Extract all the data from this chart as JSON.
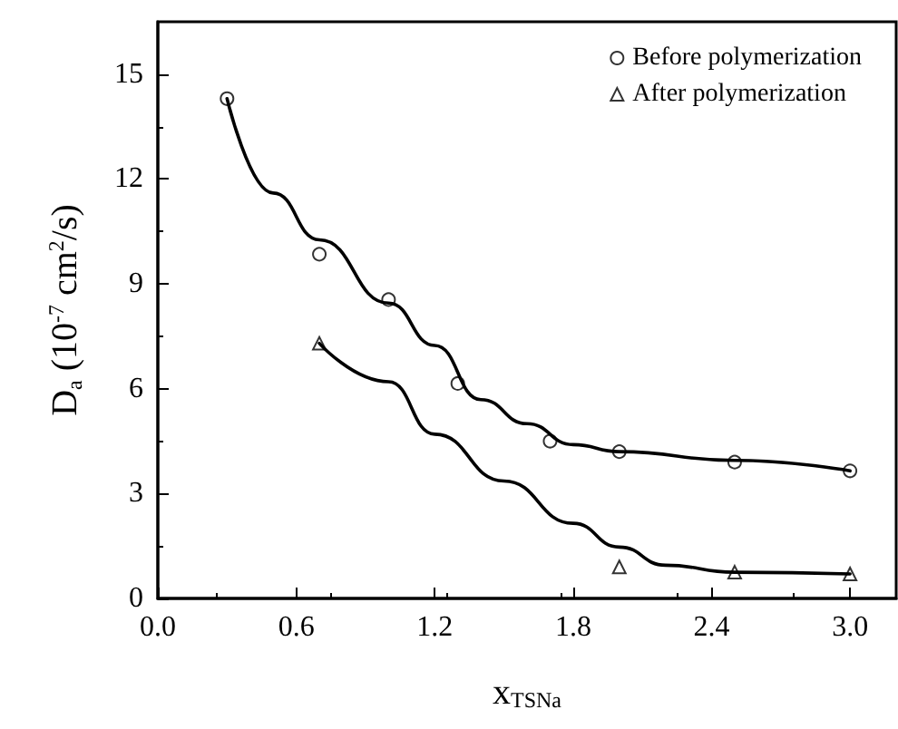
{
  "chart_data": {
    "type": "scatter",
    "xlabel": "x$_{TSNa}$",
    "ylabel": "D$_{a}$ (10$^{-7}$ cm$^{2}$/s)",
    "xlim": [
      0,
      3.2
    ],
    "xticks": [
      {
        "value": 0,
        "label": "0.0"
      },
      {
        "value": 0.6,
        "label": "0.6"
      },
      {
        "value": 1.2,
        "label": "1.2"
      },
      {
        "value": 1.8,
        "label": "1.8"
      },
      {
        "value": 2.4,
        "label": "2.4"
      },
      {
        "value": 3.0,
        "label": "3.0"
      }
    ],
    "ylim": [
      0,
      16.5
    ],
    "yticks": [
      0,
      3,
      6,
      9,
      12,
      15
    ],
    "grid": false,
    "legend": "top right",
    "series": [
      {
        "name": "Before polymerization",
        "color": "#000000",
        "marker": "circle",
        "x": [
          0.3,
          0.7,
          1.0,
          1.3,
          1.7,
          2.0,
          2.5,
          3.0
        ],
        "values": [
          14.3,
          9.85,
          8.55,
          6.15,
          4.5,
          4.2,
          3.9,
          3.65
        ]
      },
      {
        "name": "After polymerization",
        "color": "#000000",
        "marker": "triangle",
        "x": [
          0.7,
          2.0,
          2.5,
          3.0
        ],
        "values": [
          7.3,
          0.9,
          0.75,
          0.7
        ]
      },
      {
        "type": "line",
        "color": "#000000",
        "marker": "none",
        "line_style": "solid",
        "x": [
          0.3,
          0.5,
          0.7,
          1.0,
          1.2,
          1.4,
          1.6,
          1.8,
          2.0,
          2.5,
          3.0
        ],
        "values": [
          14.3,
          11.6,
          10.26,
          8.45,
          7.24,
          5.69,
          5.0,
          4.4,
          4.2,
          3.95,
          3.65
        ]
      },
      {
        "type": "line",
        "color": "#000000",
        "marker": "none",
        "line_style": "solid",
        "x": [
          0.7,
          1.0,
          1.2,
          1.5,
          1.8,
          2.0,
          2.2,
          2.5,
          3.0
        ],
        "values": [
          7.3,
          6.2,
          4.7,
          3.36,
          2.15,
          1.47,
          0.95,
          0.75,
          0.7
        ]
      }
    ]
  }
}
